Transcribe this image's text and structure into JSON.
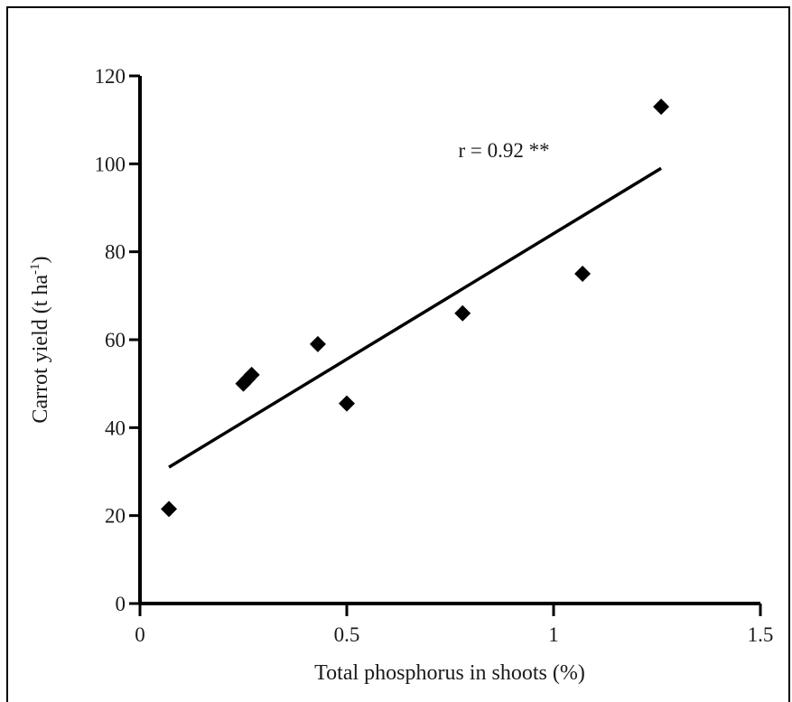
{
  "chart_data": {
    "type": "scatter",
    "title": "",
    "xlabel": "Total phosphorus in shoots (%)",
    "ylabel_main": "Carrot yield (t ha",
    "ylabel_sup": "-1",
    "ylabel_end": ")",
    "xlim": [
      0,
      1.5
    ],
    "ylim": [
      0,
      120
    ],
    "xticks": [
      0,
      0.5,
      1,
      1.5
    ],
    "xtick_labels": [
      "0",
      "0.5",
      "1",
      "1.5"
    ],
    "yticks": [
      0,
      20,
      40,
      60,
      80,
      100,
      120
    ],
    "ytick_labels": [
      "0",
      "20",
      "40",
      "60",
      "80",
      "100",
      "120"
    ],
    "grid": false,
    "points": [
      {
        "x": 0.07,
        "y": 21.5
      },
      {
        "x": 0.25,
        "y": 50.0
      },
      {
        "x": 0.26,
        "y": 51.0
      },
      {
        "x": 0.27,
        "y": 52.0
      },
      {
        "x": 0.43,
        "y": 59.0
      },
      {
        "x": 0.5,
        "y": 45.5
      },
      {
        "x": 0.78,
        "y": 66.0
      },
      {
        "x": 1.07,
        "y": 75.0
      },
      {
        "x": 1.26,
        "y": 113.0
      }
    ],
    "trendline": {
      "x": [
        0.07,
        1.26
      ],
      "y": [
        31.0,
        99.0
      ]
    },
    "annotation": "r = 0.92 **",
    "annotation_anchor": {
      "x": 0.88,
      "y": 99.0
    },
    "marker": "diamond",
    "color": "#000000"
  }
}
